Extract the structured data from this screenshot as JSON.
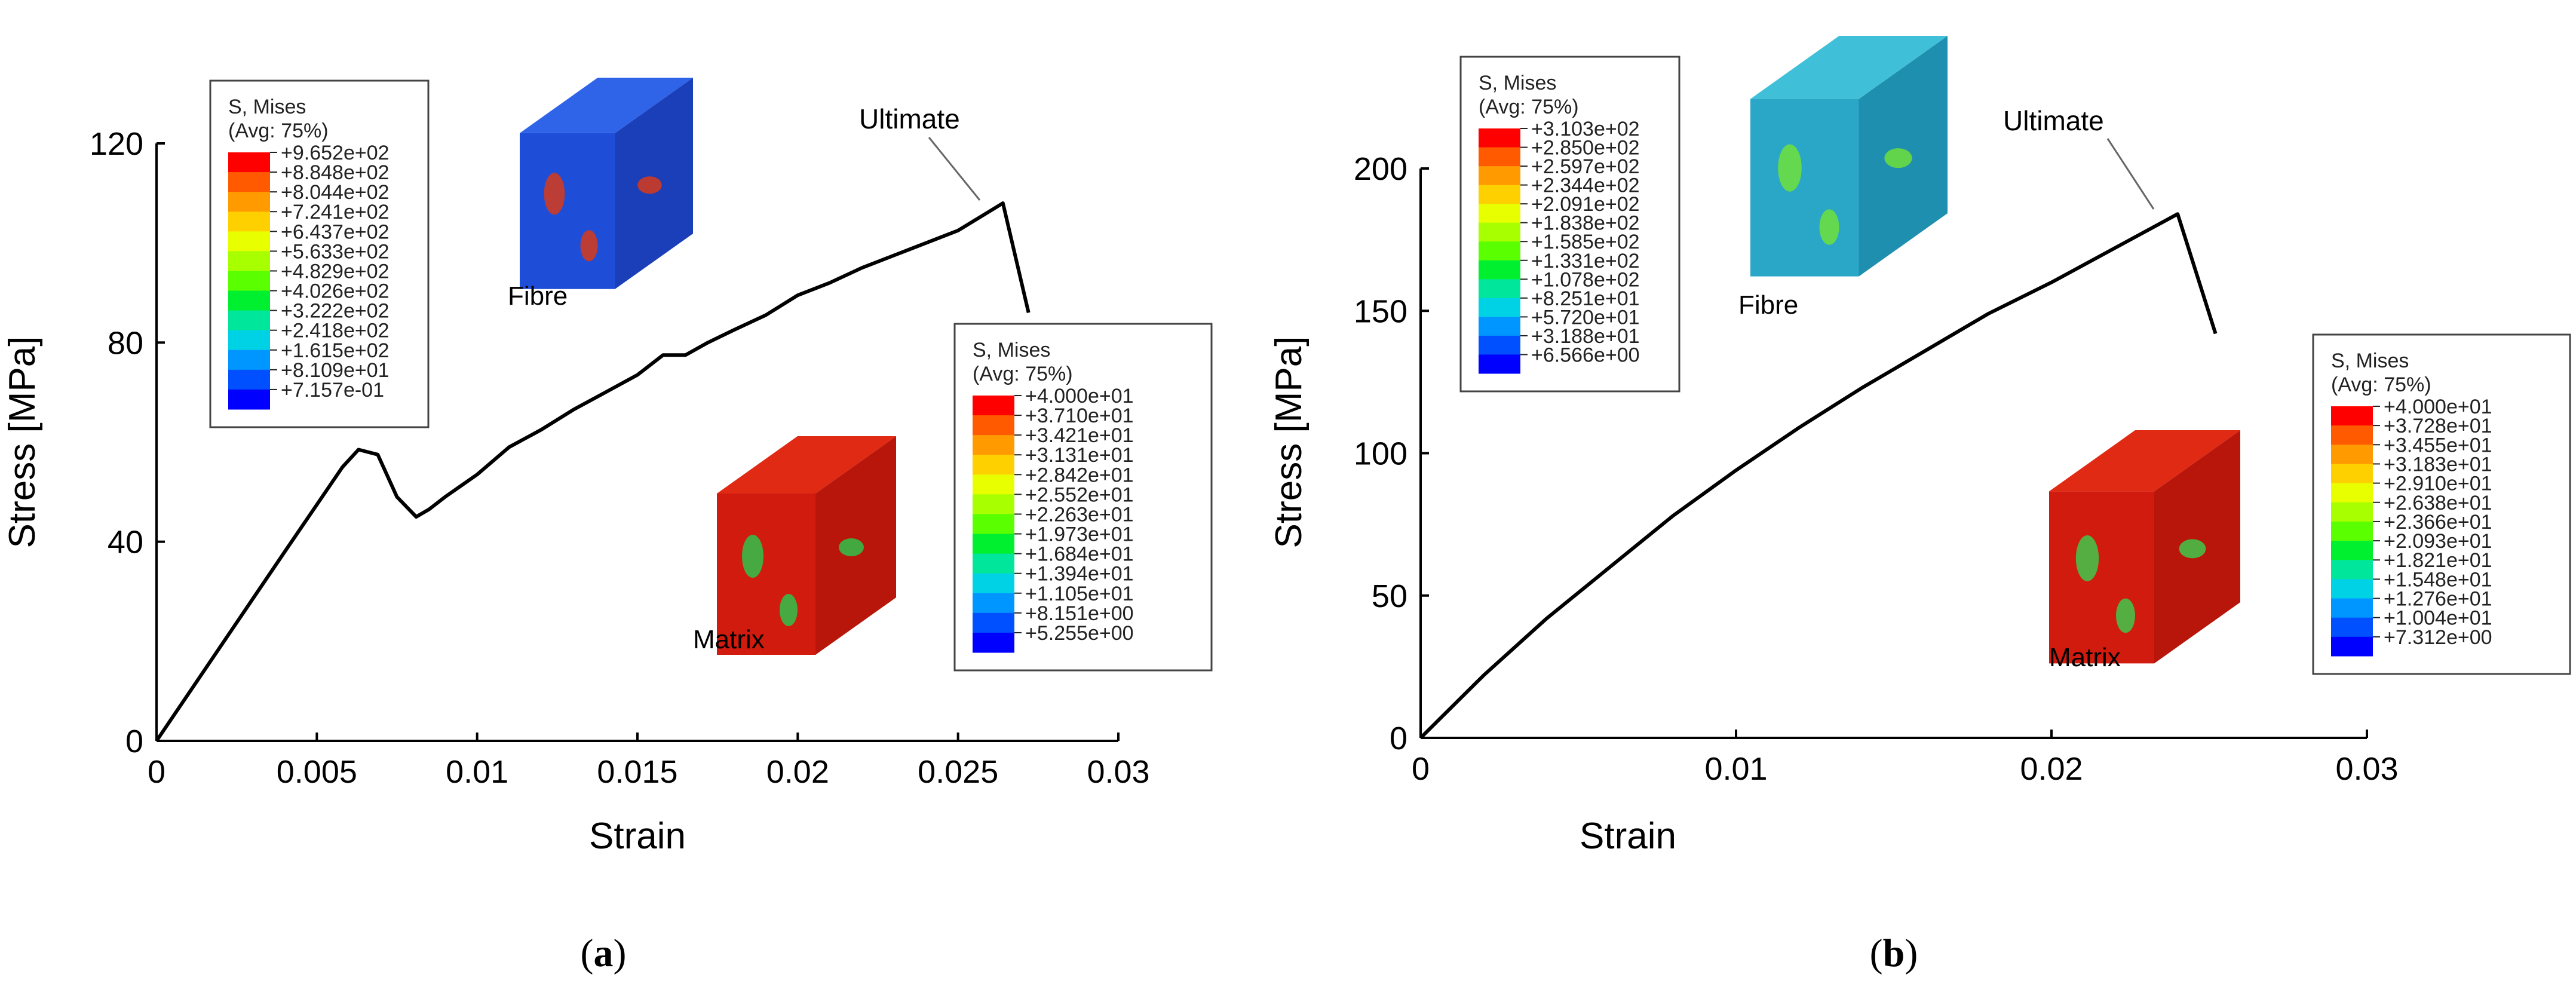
{
  "chart_data": [
    {
      "type": "line",
      "panel_label": "a",
      "xlabel": "Strain",
      "ylabel": "Stress [MPa]",
      "xlim": [
        0,
        0.03
      ],
      "ylim": [
        0,
        120
      ],
      "xticks": [
        0,
        0.005,
        0.01,
        0.015,
        0.02,
        0.025,
        0.03
      ],
      "xtick_labels": [
        "0",
        "0.005",
        "0.01",
        "0.015",
        "0.02",
        "0.025",
        "0.03"
      ],
      "yticks": [
        0,
        40,
        80,
        120
      ],
      "ytick_labels": [
        "0",
        "40",
        "80",
        "120"
      ],
      "series": [
        {
          "x": [
            0,
            0.002,
            0.004,
            0.0058,
            0.0063,
            0.0069,
            0.0075,
            0.0081,
            0.0085,
            0.009,
            0.01,
            0.011,
            0.012,
            0.013,
            0.014,
            0.015,
            0.0158,
            0.0165,
            0.0172,
            0.018,
            0.019,
            0.02,
            0.021,
            0.022,
            0.023,
            0.024,
            0.025,
            0.0264,
            0.0272
          ],
          "y": [
            0,
            19,
            38,
            55,
            58.5,
            57.5,
            49,
            45,
            46.5,
            49,
            53.5,
            59,
            62.5,
            66.5,
            70,
            73.5,
            77.5,
            77.5,
            80,
            82.5,
            85.5,
            89.5,
            92,
            95,
            97.5,
            100,
            102.5,
            108,
            86
          ]
        }
      ],
      "annotations": [
        "Ultimate",
        "Fibre",
        "Matrix"
      ],
      "insets": [
        {
          "name": "fibre-legend",
          "header": [
            "S, Mises",
            "(Avg: 75%)"
          ],
          "values": [
            "+9.652e+02",
            "+8.848e+02",
            "+8.044e+02",
            "+7.241e+02",
            "+6.437e+02",
            "+5.633e+02",
            "+4.829e+02",
            "+4.026e+02",
            "+3.222e+02",
            "+2.418e+02",
            "+1.615e+02",
            "+8.109e+01",
            "+7.157e-01"
          ]
        },
        {
          "name": "matrix-legend",
          "header": [
            "S, Mises",
            "(Avg: 75%)"
          ],
          "values": [
            "+4.000e+01",
            "+3.710e+01",
            "+3.421e+01",
            "+3.131e+01",
            "+2.842e+01",
            "+2.552e+01",
            "+2.263e+01",
            "+1.973e+01",
            "+1.684e+01",
            "+1.394e+01",
            "+1.105e+01",
            "+8.151e+00",
            "+5.255e+00"
          ]
        }
      ]
    },
    {
      "type": "line",
      "panel_label": "b",
      "xlabel": "Strain",
      "ylabel": "Stress [MPa]",
      "xlim": [
        0,
        0.03
      ],
      "ylim": [
        0,
        200
      ],
      "xticks": [
        0,
        0.01,
        0.02,
        0.03
      ],
      "xtick_labels": [
        "0",
        "0.01",
        "0.02",
        "0.03"
      ],
      "yticks": [
        0,
        50,
        100,
        150,
        200
      ],
      "ytick_labels": [
        "0",
        "50",
        "100",
        "150",
        "200"
      ],
      "series": [
        {
          "x": [
            0,
            0.002,
            0.004,
            0.006,
            0.008,
            0.01,
            0.012,
            0.014,
            0.016,
            0.018,
            0.02,
            0.022,
            0.024,
            0.0252
          ],
          "y": [
            0,
            22,
            42,
            60,
            78,
            94,
            109,
            123,
            136,
            149,
            160,
            172,
            184,
            142
          ]
        }
      ],
      "annotations": [
        "Ultimate",
        "Fibre",
        "Matrix"
      ],
      "insets": [
        {
          "name": "fibre-legend",
          "header": [
            "S, Mises",
            "(Avg: 75%)"
          ],
          "values": [
            "+3.103e+02",
            "+2.850e+02",
            "+2.597e+02",
            "+2.344e+02",
            "+2.091e+02",
            "+1.838e+02",
            "+1.585e+02",
            "+1.331e+02",
            "+1.078e+02",
            "+8.251e+01",
            "+5.720e+01",
            "+3.188e+01",
            "+6.566e+00"
          ]
        },
        {
          "name": "matrix-legend",
          "header": [
            "S, Mises",
            "(Avg: 75%)"
          ],
          "values": [
            "+4.000e+01",
            "+3.728e+01",
            "+3.455e+01",
            "+3.183e+01",
            "+2.910e+01",
            "+2.638e+01",
            "+2.366e+01",
            "+2.093e+01",
            "+1.821e+01",
            "+1.548e+01",
            "+1.276e+01",
            "+1.004e+01",
            "+7.312e+00"
          ]
        }
      ]
    }
  ],
  "colormap": [
    "#ff0000",
    "#ff5a00",
    "#ff9a00",
    "#ffd000",
    "#e8ff00",
    "#a8ff00",
    "#5aff00",
    "#00f030",
    "#00e69a",
    "#00d2e6",
    "#0096ff",
    "#0050ff",
    "#0000ff"
  ],
  "captions": {
    "a": "(a)",
    "b": "(b)"
  }
}
